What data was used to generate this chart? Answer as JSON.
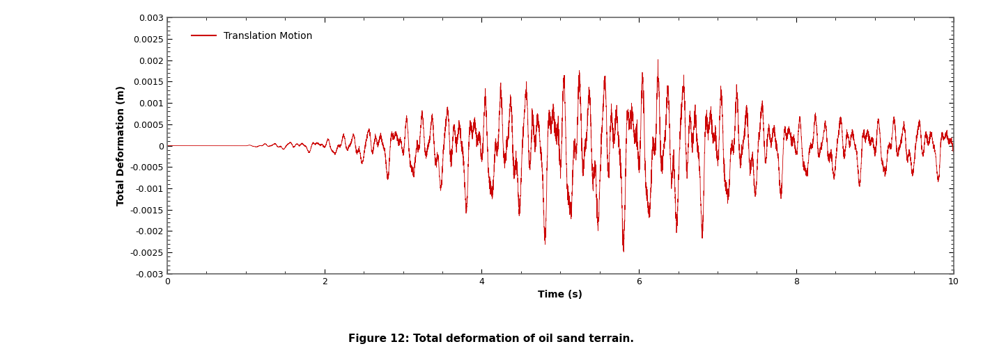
{
  "title": "Figure 12: Total deformation of oil sand terrain.",
  "xlabel": "Time (s)",
  "ylabel": "Total Deformation (m)",
  "legend_label": "Translation Motion",
  "line_color": "#cc0000",
  "xlim": [
    0,
    10
  ],
  "ylim": [
    -0.003,
    0.003
  ],
  "xticks": [
    0,
    2,
    4,
    6,
    8,
    10
  ],
  "yticks": [
    -0.003,
    -0.0025,
    -0.002,
    -0.0015,
    -0.001,
    -0.0005,
    0,
    0.0005,
    0.001,
    0.0015,
    0.002,
    0.0025,
    0.003
  ],
  "figsize": [
    14.11,
    5.05
  ],
  "dpi": 100,
  "background_color": "#ffffff",
  "plot_bg_color": "#ffffff",
  "spine_color": "#666666",
  "title_fontsize": 11,
  "label_fontsize": 10,
  "tick_fontsize": 9,
  "legend_fontsize": 10,
  "line_width": 0.6,
  "seed": 42,
  "n_points": 8000,
  "duration": 10.0
}
